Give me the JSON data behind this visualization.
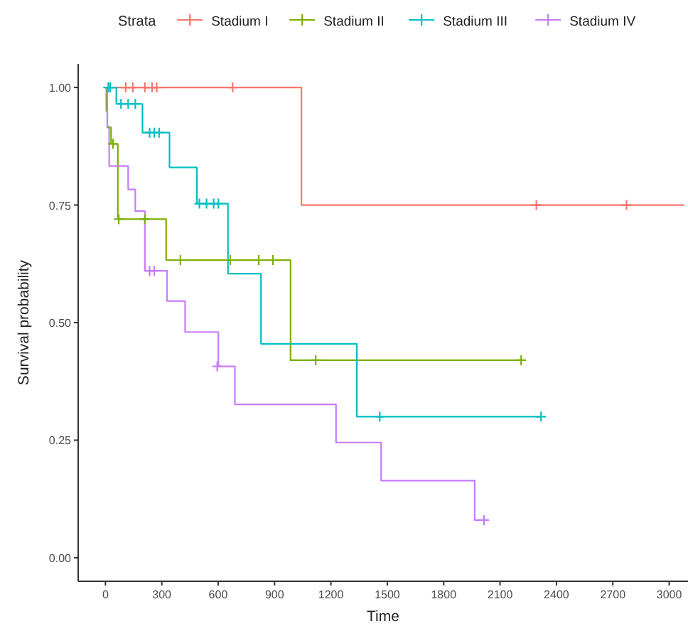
{
  "chart_data": {
    "type": "step",
    "xlabel": "Time",
    "ylabel": "Survival probability",
    "legend_title": "Strata",
    "legend": "top",
    "grid": false,
    "xlim": [
      -145,
      3100
    ],
    "xticks": [
      0,
      300,
      600,
      900,
      1200,
      1500,
      1800,
      2100,
      2400,
      2700,
      3000
    ],
    "ylim": [
      -0.05,
      1.05
    ],
    "yticks": [
      {
        "value": 0,
        "label": "0.00"
      },
      {
        "value": 0.25,
        "label": "0.25"
      },
      {
        "value": 0.5,
        "label": "0.50"
      },
      {
        "value": 0.75,
        "label": "0.75"
      },
      {
        "value": 1,
        "label": "1.00"
      }
    ],
    "series": [
      {
        "name": "Stadium I",
        "color": "#f8766d",
        "x": [
          0,
          1043,
          3080
        ],
        "values": [
          1,
          0.75,
          0.75
        ]
      },
      {
        "name": "Stadium II",
        "color": "#7cae00",
        "x": [
          0,
          5,
          10,
          30,
          66,
          323,
          985,
          2212
        ],
        "values": [
          1,
          0.95,
          0.915,
          0.88,
          0.72,
          0.633,
          0.42,
          0.42
        ]
      },
      {
        "name": "Stadium III",
        "color": "#00bfc4",
        "x": [
          0,
          58,
          197,
          341,
          487,
          652,
          828,
          1338,
          2318
        ],
        "values": [
          1,
          0.965,
          0.904,
          0.83,
          0.753,
          0.604,
          0.455,
          0.3,
          0.3
        ]
      },
      {
        "name": "Stadium IV",
        "color": "#c77cff",
        "x": [
          0,
          10,
          20,
          121,
          159,
          210,
          328,
          424,
          601,
          689,
          1227,
          1467,
          1965,
          2015
        ],
        "values": [
          1,
          0.917,
          0.833,
          0.783,
          0.737,
          0.61,
          0.546,
          0.48,
          0.407,
          0.326,
          0.245,
          0.164,
          0.08,
          0.08
        ]
      },
      {
        "type": "scatter",
        "color": "#f8766d",
        "marker": "cross",
        "x": [
          108,
          146,
          210,
          248,
          273,
          677,
          2293,
          2773
        ],
        "values": [
          1,
          1,
          1,
          1,
          1,
          1,
          0.75,
          0.75
        ]
      },
      {
        "type": "scatter",
        "color": "#7cae00",
        "marker": "cross",
        "x": [
          40,
          71,
          210,
          399,
          664,
          816,
          891,
          1119,
          2212
        ],
        "values": [
          0.88,
          0.72,
          0.72,
          0.633,
          0.633,
          0.633,
          0.633,
          0.42,
          0.42
        ]
      },
      {
        "type": "scatter",
        "color": "#00bfc4",
        "marker": "cross",
        "x": [
          15,
          25,
          83,
          121,
          159,
          235,
          260,
          286,
          500,
          538,
          576,
          601,
          1460,
          2318
        ],
        "values": [
          1,
          1,
          0.965,
          0.965,
          0.965,
          0.904,
          0.904,
          0.904,
          0.753,
          0.753,
          0.753,
          0.753,
          0.3,
          0.3
        ]
      },
      {
        "type": "scatter",
        "color": "#c77cff",
        "marker": "cross",
        "x": [
          235,
          260,
          595,
          2015
        ],
        "values": [
          0.61,
          0.61,
          0.407,
          0.08
        ]
      }
    ]
  }
}
